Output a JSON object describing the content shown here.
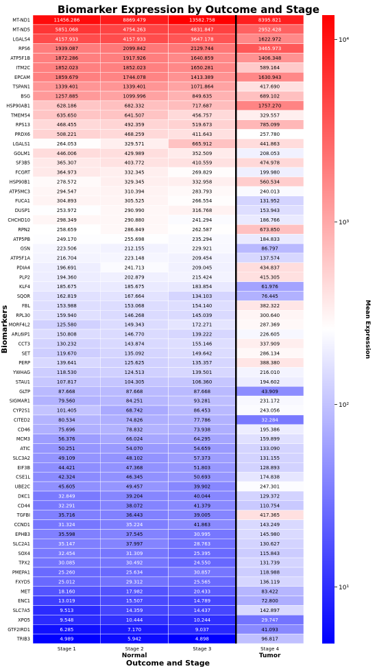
{
  "chart_data": {
    "type": "heatmap",
    "title": "Biomarker Expression by Outcome and Stage",
    "xlabel": "Outcome and Stage",
    "ylabel": "Biomarkers",
    "colorbar_label": "Mean Expression",
    "color_scale": "log",
    "colormap": [
      "#0000ff",
      "#ffffff",
      "#ff0000"
    ],
    "color_range": [
      4.898,
      13582.758
    ],
    "colorbar_ticks": [
      {
        "value": 10,
        "label": "10¹"
      },
      {
        "value": 100,
        "label": "10²"
      },
      {
        "value": 1000,
        "label": "10³"
      },
      {
        "value": 10000,
        "label": "10⁴"
      }
    ],
    "columns": [
      "Stage 1",
      "Stage 2",
      "Stage 3",
      "Stage 4"
    ],
    "groups": [
      {
        "label": "Normal",
        "columns": [
          0,
          1,
          2
        ]
      },
      {
        "label": "Tumor",
        "columns": [
          3
        ]
      }
    ],
    "rows": [
      {
        "name": "MT-ND1",
        "values": [
          11456.286,
          8869.479,
          13582.758,
          8395.821
        ]
      },
      {
        "name": "MT-ND5",
        "values": [
          5851.068,
          4754.263,
          4831.847,
          2952.428
        ]
      },
      {
        "name": "LGALS4",
        "values": [
          4157.933,
          4157.933,
          3647.178,
          1622.972
        ]
      },
      {
        "name": "RPS6",
        "values": [
          1939.087,
          2099.842,
          2129.744,
          3465.973
        ]
      },
      {
        "name": "ATP5F1B",
        "values": [
          1872.286,
          1917.926,
          1640.859,
          1406.348
        ]
      },
      {
        "name": "ITM2C",
        "values": [
          1852.023,
          1852.023,
          1650.281,
          589.164
        ]
      },
      {
        "name": "EPCAM",
        "values": [
          1859.679,
          1744.078,
          1413.389,
          1630.943
        ]
      },
      {
        "name": "TSPAN1",
        "values": [
          1339.401,
          1339.401,
          1071.864,
          417.69
        ]
      },
      {
        "name": "BSG",
        "values": [
          1257.885,
          1099.996,
          849.635,
          689.102
        ]
      },
      {
        "name": "HSP90AB1",
        "values": [
          628.186,
          682.332,
          717.687,
          1757.27
        ]
      },
      {
        "name": "TMEM54",
        "values": [
          635.65,
          641.507,
          456.757,
          329.557
        ]
      },
      {
        "name": "RPS13",
        "values": [
          468.455,
          492.359,
          519.673,
          785.099
        ]
      },
      {
        "name": "PRDX6",
        "values": [
          508.221,
          468.259,
          411.643,
          257.78
        ]
      },
      {
        "name": "LGALS1",
        "values": [
          264.053,
          329.571,
          665.912,
          441.863
        ]
      },
      {
        "name": "GOLM1",
        "values": [
          446.006,
          429.989,
          352.509,
          208.053
        ]
      },
      {
        "name": "SF3B5",
        "values": [
          365.307,
          403.772,
          410.559,
          474.978
        ]
      },
      {
        "name": "FCGRT",
        "values": [
          364.973,
          332.345,
          269.829,
          199.98
        ]
      },
      {
        "name": "HSP90B1",
        "values": [
          278.572,
          329.345,
          332.958,
          560.534
        ]
      },
      {
        "name": "ATP5MC3",
        "values": [
          294.547,
          310.394,
          283.793,
          240.013
        ]
      },
      {
        "name": "FUCA1",
        "values": [
          304.893,
          305.525,
          266.554,
          131.952
        ]
      },
      {
        "name": "DUSP1",
        "values": [
          253.972,
          290.99,
          316.768,
          153.943
        ]
      },
      {
        "name": "CHCHD10",
        "values": [
          298.349,
          290.88,
          241.294,
          186.766
        ]
      },
      {
        "name": "RPN2",
        "values": [
          258.659,
          286.849,
          262.587,
          673.85
        ]
      },
      {
        "name": "ATP5PB",
        "values": [
          249.17,
          255.698,
          235.294,
          184.833
        ]
      },
      {
        "name": "GSN",
        "values": [
          223.506,
          212.155,
          229.921,
          86.797
        ]
      },
      {
        "name": "ATP5F1A",
        "values": [
          216.704,
          223.148,
          209.454,
          137.574
        ]
      },
      {
        "name": "PDIA4",
        "values": [
          196.691,
          241.713,
          209.045,
          434.837
        ]
      },
      {
        "name": "PLP2",
        "values": [
          194.36,
          202.879,
          215.424,
          415.305
        ]
      },
      {
        "name": "KLF4",
        "values": [
          185.675,
          185.675,
          183.854,
          61.976
        ]
      },
      {
        "name": "SQOR",
        "values": [
          162.819,
          167.664,
          134.103,
          76.445
        ]
      },
      {
        "name": "FBL",
        "values": [
          153.988,
          153.068,
          154.14,
          382.322
        ]
      },
      {
        "name": "RPL30",
        "values": [
          159.94,
          146.268,
          145.039,
          300.64
        ]
      },
      {
        "name": "MORF4L2",
        "values": [
          125.58,
          149.343,
          172.271,
          287.369
        ]
      },
      {
        "name": "ARL6IP1",
        "values": [
          150.808,
          146.77,
          139.222,
          226.605
        ]
      },
      {
        "name": "CCT3",
        "values": [
          130.232,
          143.874,
          155.146,
          337.909
        ]
      },
      {
        "name": "SET",
        "values": [
          119.67,
          135.092,
          149.642,
          286.134
        ]
      },
      {
        "name": "PERP",
        "values": [
          139.641,
          125.625,
          135.357,
          388.38
        ]
      },
      {
        "name": "YWHAG",
        "values": [
          118.53,
          124.513,
          139.501,
          216.01
        ]
      },
      {
        "name": "STAU1",
        "values": [
          107.817,
          104.305,
          106.36,
          194.602
        ]
      },
      {
        "name": "GLTP",
        "values": [
          87.668,
          87.668,
          87.668,
          43.909
        ]
      },
      {
        "name": "SIGMAR1",
        "values": [
          79.56,
          84.251,
          93.281,
          231.172
        ]
      },
      {
        "name": "CYP2S1",
        "values": [
          101.405,
          68.742,
          86.453,
          243.056
        ]
      },
      {
        "name": "CITED2",
        "values": [
          80.534,
          74.826,
          77.786,
          32.284
        ]
      },
      {
        "name": "CD46",
        "values": [
          75.696,
          78.832,
          73.938,
          195.386
        ]
      },
      {
        "name": "MCM3",
        "values": [
          56.376,
          66.024,
          64.295,
          159.899
        ]
      },
      {
        "name": "ATIC",
        "values": [
          50.251,
          54.07,
          54.659,
          133.09
        ]
      },
      {
        "name": "SLC3A2",
        "values": [
          49.109,
          48.102,
          57.373,
          131.155
        ]
      },
      {
        "name": "EIF3B",
        "values": [
          44.421,
          47.368,
          51.803,
          128.893
        ]
      },
      {
        "name": "CSE1L",
        "values": [
          42.324,
          46.345,
          50.693,
          174.838
        ]
      },
      {
        "name": "UBE2C",
        "values": [
          45.605,
          49.457,
          39.902,
          247.301
        ]
      },
      {
        "name": "DKC1",
        "values": [
          32.849,
          39.204,
          40.044,
          129.372
        ]
      },
      {
        "name": "CD44",
        "values": [
          32.291,
          38.072,
          41.379,
          110.754
        ]
      },
      {
        "name": "TGFBI",
        "values": [
          35.716,
          36.443,
          39.005,
          417.365
        ]
      },
      {
        "name": "CCND1",
        "values": [
          31.324,
          35.224,
          41.863,
          143.249
        ]
      },
      {
        "name": "EPHB3",
        "values": [
          35.598,
          37.545,
          30.995,
          145.98
        ]
      },
      {
        "name": "SLC2A1",
        "values": [
          35.147,
          37.997,
          28.763,
          130.627
        ]
      },
      {
        "name": "SOX4",
        "values": [
          32.454,
          31.309,
          25.395,
          115.843
        ]
      },
      {
        "name": "TPX2",
        "values": [
          30.085,
          30.492,
          24.55,
          131.739
        ]
      },
      {
        "name": "PMEPA1",
        "values": [
          25.26,
          25.634,
          30.857,
          118.988
        ]
      },
      {
        "name": "FXYD5",
        "values": [
          25.012,
          29.312,
          25.565,
          136.119
        ]
      },
      {
        "name": "MET",
        "values": [
          18.16,
          17.982,
          20.433,
          83.422
        ]
      },
      {
        "name": "ENC1",
        "values": [
          13.019,
          15.507,
          14.789,
          72.8
        ]
      },
      {
        "name": "SLC7A5",
        "values": [
          9.513,
          14.359,
          14.437,
          142.897
        ]
      },
      {
        "name": "XPO5",
        "values": [
          9.548,
          10.444,
          10.244,
          29.747
        ]
      },
      {
        "name": "GTF2IRD1",
        "values": [
          6.285,
          7.17,
          9.037,
          41.093
        ]
      },
      {
        "name": "TRIB3",
        "values": [
          4.989,
          5.942,
          4.898,
          96.817
        ]
      }
    ]
  }
}
